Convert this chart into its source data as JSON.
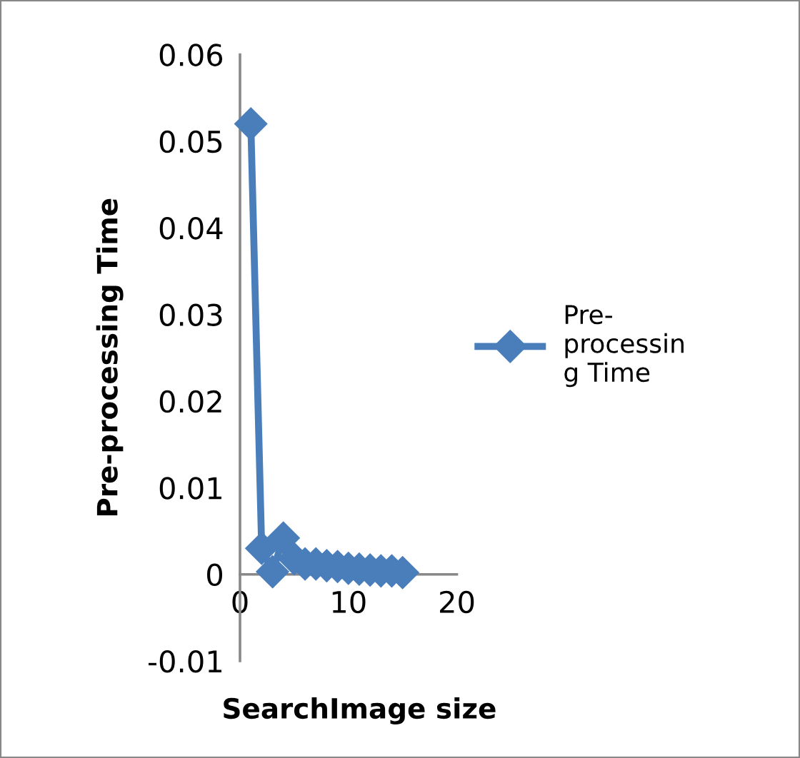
{
  "chart_data": {
    "type": "line",
    "xlabel": "SearchImage size",
    "ylabel": "Pre-processing Time",
    "x": [
      1,
      2,
      3,
      4,
      5,
      6,
      7,
      8,
      9,
      10,
      11,
      12,
      13,
      14,
      15
    ],
    "series": [
      {
        "name": "Pre-processing Time",
        "color": "#4a7ebb",
        "values": [
          0.052,
          0.003,
          0.0003,
          0.0042,
          0.0018,
          0.0012,
          0.0012,
          0.001,
          0.0009,
          0.0007,
          0.0006,
          0.0005,
          0.0004,
          0.0004,
          0.0002
        ]
      }
    ],
    "xlim": [
      0,
      20
    ],
    "xticks": [
      0,
      10,
      20
    ],
    "ylim": [
      -0.01,
      0.06
    ],
    "yticks": [
      -0.01,
      0,
      0.01,
      0.02,
      0.03,
      0.04,
      0.05,
      0.06
    ],
    "grid": false,
    "legend": "right",
    "marker": "diamond",
    "line_style": "solid"
  }
}
